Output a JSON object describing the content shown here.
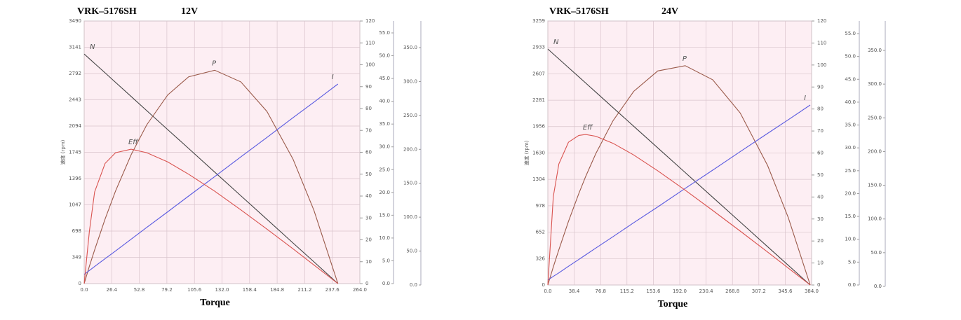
{
  "chart_data": [
    {
      "type": "line",
      "model": "VRK–5176SH",
      "voltage": "12V",
      "x_label": "Torque",
      "y_label": "速度 (rpm)",
      "x": [
        0,
        5,
        10,
        20,
        30,
        45,
        60,
        80,
        100,
        125,
        150,
        175,
        200,
        220,
        243
      ],
      "xlim": [
        0,
        264
      ],
      "xticks": [
        {
          "value": 0,
          "label": "0.0"
        },
        26.4,
        52.8,
        79.2,
        105.6,
        {
          "value": 132,
          "label": "132.0"
        },
        158.4,
        184.8,
        211.2,
        237.6,
        {
          "value": 264,
          "label": "264.0"
        }
      ],
      "ylim": [
        0,
        3490
      ],
      "yticks": [
        0,
        349,
        698,
        1047,
        1396,
        1745,
        2094,
        2443,
        2792,
        3141,
        3490
      ],
      "y2lim": [
        0,
        120
      ],
      "y2ticks": [
        0,
        10,
        20,
        30,
        40,
        50,
        60,
        70,
        80,
        90,
        100,
        110,
        120
      ],
      "y3lim": [
        0,
        55
      ],
      "y3ticks": [
        {
          "value": 0,
          "label": "0.0"
        },
        {
          "value": 5,
          "label": "5.0"
        },
        {
          "value": 10,
          "label": "10.0"
        },
        {
          "value": 15,
          "label": "15.0"
        },
        {
          "value": 20,
          "label": "20.0"
        },
        {
          "value": 25,
          "label": "25.0"
        },
        {
          "value": 30,
          "label": "30.0"
        },
        {
          "value": 35,
          "label": "35.0"
        },
        {
          "value": 40,
          "label": "40.0"
        },
        {
          "value": 45,
          "label": "45.0"
        },
        {
          "value": 50,
          "label": "50.0"
        },
        {
          "value": 55,
          "label": "55.0"
        }
      ],
      "y4lim": [
        0,
        350
      ],
      "y4ticks": [
        {
          "value": 0,
          "label": "0.0"
        },
        {
          "value": 50,
          "label": "50.0"
        },
        {
          "value": 100,
          "label": "100.0"
        },
        {
          "value": 150,
          "label": "150.0"
        },
        {
          "value": 200,
          "label": "200.0"
        },
        {
          "value": 250,
          "label": "250.0"
        },
        {
          "value": 300,
          "label": "300.0"
        },
        {
          "value": 350,
          "label": "350.0"
        }
      ],
      "grid": true,
      "series": [
        {
          "name": "N",
          "color": "#444444",
          "axis": "y",
          "values": [
            3052,
            2989,
            2926,
            2801,
            2675,
            2487,
            2298,
            2047,
            1796,
            1482,
            1168,
            854,
            540,
            289,
            0
          ]
        },
        {
          "name": "P",
          "color": "#9a5a4a",
          "axis": "y2",
          "values": [
            0,
            7.9,
            15.4,
            29.5,
            42.3,
            58.9,
            72.6,
            86.2,
            94.5,
            97.5,
            92.2,
            78.7,
            56.9,
            33.5,
            0
          ]
        },
        {
          "name": "I",
          "color": "#5a5ae0",
          "axis": "y2",
          "values": [
            4.2,
            6.0,
            7.8,
            11.4,
            14.9,
            20.3,
            25.7,
            32.8,
            40.0,
            48.9,
            57.9,
            66.8,
            75.8,
            82.9,
            91.2
          ]
        },
        {
          "name": "Eff",
          "color": "#d9534f",
          "axis": "y2",
          "values": [
            0,
            23.8,
            41.9,
            54.9,
            59.8,
            61.4,
            59.8,
            55.6,
            50.0,
            42.2,
            33.7,
            24.9,
            15.9,
            8.5,
            0
          ]
        }
      ]
    },
    {
      "type": "line",
      "model": "VRK–5176SH",
      "voltage": "24V",
      "x_label": "Torque",
      "y_label": "速度 (rpm)",
      "x": [
        0,
        8,
        16,
        30,
        45,
        55,
        70,
        95,
        125,
        160,
        200,
        240,
        280,
        320,
        350,
        382
      ],
      "xlim": [
        0,
        384
      ],
      "xticks": [
        {
          "value": 0,
          "label": "0.0"
        },
        38.4,
        76.8,
        115.2,
        153.6,
        {
          "value": 192,
          "label": "192.0"
        },
        230.4,
        268.8,
        307.2,
        345.6,
        {
          "value": 384,
          "label": "384.0"
        }
      ],
      "ylim": [
        0,
        3259
      ],
      "yticks": [
        0,
        326,
        652,
        978,
        1304,
        1630,
        1956,
        2281,
        2607,
        2933,
        3259
      ],
      "y2lim": [
        0,
        120
      ],
      "y2ticks": [
        0,
        10,
        20,
        30,
        40,
        50,
        60,
        70,
        80,
        90,
        100,
        110,
        120
      ],
      "y3lim": [
        0,
        55
      ],
      "y3ticks": [
        {
          "value": 0,
          "label": "0.0"
        },
        {
          "value": 5,
          "label": "5.0"
        },
        {
          "value": 10,
          "label": "10.0"
        },
        {
          "value": 15,
          "label": "15.0"
        },
        {
          "value": 20,
          "label": "20.0"
        },
        {
          "value": 25,
          "label": "25.0"
        },
        {
          "value": 30,
          "label": "30.0"
        },
        {
          "value": 35,
          "label": "35.0"
        },
        {
          "value": 40,
          "label": "40.0"
        },
        {
          "value": 45,
          "label": "45.0"
        },
        {
          "value": 50,
          "label": "50.0"
        },
        {
          "value": 55,
          "label": "55.0"
        }
      ],
      "y4lim": [
        0,
        350
      ],
      "y4ticks": [
        {
          "value": 0,
          "label": "0.0"
        },
        {
          "value": 50,
          "label": "50.0"
        },
        {
          "value": 100,
          "label": "100.0"
        },
        {
          "value": 150,
          "label": "150.0"
        },
        {
          "value": 200,
          "label": "200.0"
        },
        {
          "value": 250,
          "label": "250.0"
        },
        {
          "value": 300,
          "label": "300.0"
        },
        {
          "value": 350,
          "label": "350.0"
        }
      ],
      "grid": true,
      "series": [
        {
          "name": "N",
          "color": "#444444",
          "axis": "y",
          "values": [
            2913,
            2852,
            2791,
            2684,
            2570,
            2494,
            2380,
            2189,
            1960,
            1693,
            1388,
            1083,
            778,
            473,
            244,
            0
          ]
        },
        {
          "name": "P",
          "color": "#9a5a4a",
          "axis": "y2",
          "values": [
            0,
            8.2,
            16.0,
            28.9,
            41.5,
            49.3,
            59.8,
            74.7,
            88.0,
            97.3,
            99.7,
            93.3,
            78.2,
            54.3,
            30.7,
            0
          ]
        },
        {
          "name": "I",
          "color": "#5a5ae0",
          "axis": "y2",
          "values": [
            2.2,
            3.9,
            5.5,
            8.5,
            11.6,
            13.7,
            16.8,
            22.0,
            28.3,
            35.5,
            43.9,
            52.2,
            60.6,
            68.9,
            75.1,
            81.8
          ]
        },
        {
          "name": "Eff",
          "color": "#d9534f",
          "axis": "y2",
          "values": [
            0,
            40.2,
            55.0,
            64.9,
            68.0,
            68.4,
            67.6,
            64.4,
            59.1,
            51.9,
            43.1,
            33.9,
            24.5,
            15.0,
            7.7,
            0
          ]
        }
      ]
    }
  ]
}
